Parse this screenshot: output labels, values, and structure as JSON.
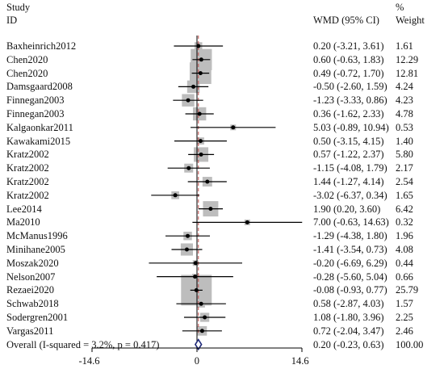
{
  "header": {
    "study_line1": "Study",
    "study_line2": "ID",
    "wmd": "WMD (95% CI)",
    "pct_line1": "%",
    "pct_line2": "Weight"
  },
  "chart_data": {
    "type": "forest",
    "xlim": [
      -14.6,
      14.6
    ],
    "xticks": [
      -14.6,
      0,
      14.6
    ],
    "xtick_labels": [
      "-14.6",
      "0",
      "14.6"
    ],
    "null_line": 0,
    "rows": [
      {
        "study": "Baxheinrich2012",
        "wmd": 0.2,
        "lo": -3.21,
        "hi": 3.61,
        "ci_text": "0.20 (-3.21, 3.61)",
        "weight": "1.61"
      },
      {
        "study": "Chen2020",
        "wmd": 0.6,
        "lo": -0.63,
        "hi": 1.83,
        "ci_text": "0.60 (-0.63, 1.83)",
        "weight": "12.29"
      },
      {
        "study": "Chen2020",
        "wmd": 0.49,
        "lo": -0.72,
        "hi": 1.7,
        "ci_text": "0.49 (-0.72, 1.70)",
        "weight": "12.81"
      },
      {
        "study": "Damsgaard2008",
        "wmd": -0.5,
        "lo": -2.6,
        "hi": 1.59,
        "ci_text": "-0.50 (-2.60, 1.59)",
        "weight": "4.24"
      },
      {
        "study": "Finnegan2003",
        "wmd": -1.23,
        "lo": -3.33,
        "hi": 0.86,
        "ci_text": "-1.23 (-3.33, 0.86)",
        "weight": "4.23"
      },
      {
        "study": "Finnegan2003",
        "wmd": 0.36,
        "lo": -1.62,
        "hi": 2.33,
        "ci_text": "0.36 (-1.62, 2.33)",
        "weight": "4.78"
      },
      {
        "study": "Kalgaonkar2011",
        "wmd": 5.03,
        "lo": -0.89,
        "hi": 10.94,
        "ci_text": "5.03 (-0.89, 10.94)",
        "weight": "0.53"
      },
      {
        "study": "Kawakami2015",
        "wmd": 0.5,
        "lo": -3.15,
        "hi": 4.15,
        "ci_text": "0.50 (-3.15, 4.15)",
        "weight": "1.40"
      },
      {
        "study": "Kratz2002",
        "wmd": 0.57,
        "lo": -1.22,
        "hi": 2.37,
        "ci_text": "0.57 (-1.22, 2.37)",
        "weight": "5.80"
      },
      {
        "study": "Kratz2002",
        "wmd": -1.15,
        "lo": -4.08,
        "hi": 1.79,
        "ci_text": "-1.15 (-4.08, 1.79)",
        "weight": "2.17"
      },
      {
        "study": "Kratz2002",
        "wmd": 1.44,
        "lo": -1.27,
        "hi": 4.14,
        "ci_text": "1.44 (-1.27, 4.14)",
        "weight": "2.54"
      },
      {
        "study": "Kratz2002",
        "wmd": -3.02,
        "lo": -6.37,
        "hi": 0.34,
        "ci_text": "-3.02 (-6.37, 0.34)",
        "weight": "1.65"
      },
      {
        "study": "Lee2014",
        "wmd": 1.9,
        "lo": 0.2,
        "hi": 3.6,
        "ci_text": "1.90 (0.20, 3.60)",
        "weight": "6.42"
      },
      {
        "study": "Ma2010",
        "wmd": 7.0,
        "lo": -0.63,
        "hi": 14.63,
        "ci_text": "7.00 (-0.63, 14.63)",
        "weight": "0.32"
      },
      {
        "study": "McManus1996",
        "wmd": -1.29,
        "lo": -4.38,
        "hi": 1.8,
        "ci_text": "-1.29 (-4.38, 1.80)",
        "weight": "1.96"
      },
      {
        "study": "Minihane2005",
        "wmd": -1.41,
        "lo": -3.54,
        "hi": 0.73,
        "ci_text": "-1.41 (-3.54, 0.73)",
        "weight": "4.08"
      },
      {
        "study": "Moszak2020",
        "wmd": -0.2,
        "lo": -6.69,
        "hi": 6.29,
        "ci_text": "-0.20 (-6.69, 6.29)",
        "weight": "0.44"
      },
      {
        "study": "Nelson2007",
        "wmd": -0.28,
        "lo": -5.6,
        "hi": 5.04,
        "ci_text": "-0.28 (-5.60, 5.04)",
        "weight": "0.66"
      },
      {
        "study": "Rezaei2020",
        "wmd": -0.08,
        "lo": -0.93,
        "hi": 0.77,
        "ci_text": "-0.08 (-0.93, 0.77)",
        "weight": "25.79"
      },
      {
        "study": "Schwab2018",
        "wmd": 0.58,
        "lo": -2.87,
        "hi": 4.03,
        "ci_text": "0.58 (-2.87, 4.03)",
        "weight": "1.57"
      },
      {
        "study": "Sodergren2001",
        "wmd": 1.08,
        "lo": -1.8,
        "hi": 3.96,
        "ci_text": "1.08 (-1.80, 3.96)",
        "weight": "2.25"
      },
      {
        "study": "Vargas2011",
        "wmd": 0.72,
        "lo": -2.04,
        "hi": 3.47,
        "ci_text": "0.72 (-2.04, 3.47)",
        "weight": "2.46"
      }
    ],
    "overall": {
      "label": "Overall  (I-squared = 3.2%, p = 0.417)",
      "wmd": 0.2,
      "lo": -0.23,
      "hi": 0.63,
      "ci_text": "0.20 (-0.23, 0.63)",
      "weight": "100.00"
    },
    "colors": {
      "box": "#bdbdbd",
      "line": "#000000",
      "diamond": "#1f2a7a",
      "overall_line": "#c0504d"
    }
  }
}
